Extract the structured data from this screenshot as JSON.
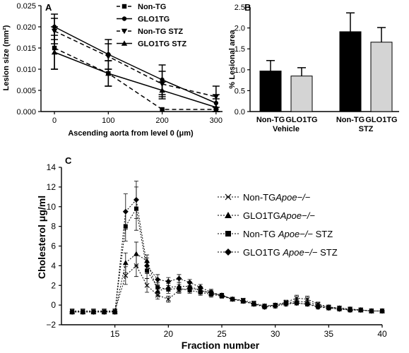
{
  "chart_data": [
    {
      "panel": "A",
      "type": "line",
      "xlabel": "Ascending aorta from level 0 (μm)",
      "ylabel": "Lesion size (mm²)",
      "x": [
        0,
        100,
        200,
        300
      ],
      "xticks": [
        "0",
        "100",
        "200",
        "300"
      ],
      "ylim": [
        0,
        0.025
      ],
      "yticks": [
        "0.000",
        "0.005",
        "0.010",
        "0.015",
        "0.020",
        "0.025"
      ],
      "series": [
        {
          "name": "Non-TG",
          "marker": "square",
          "dash": true,
          "values": [
            0.015,
            0.009,
            0.0005,
            0.0005
          ],
          "err": [
            0.005,
            0.003,
            0.0,
            0.0
          ]
        },
        {
          "name": "GLO1TG",
          "marker": "circle",
          "dash": false,
          "values": [
            0.02,
            0.0135,
            0.0075,
            0.002
          ],
          "err": [
            0.003,
            0.0035,
            0.0035,
            0.002
          ]
        },
        {
          "name": "Non-TG STZ",
          "marker": "triangle-down",
          "dash": true,
          "values": [
            0.019,
            0.013,
            0.0065,
            0.0035
          ],
          "err": [
            0.003,
            0.003,
            0.003,
            0.0025
          ]
        },
        {
          "name": "GLO1TG STZ",
          "marker": "triangle-up",
          "dash": false,
          "values": [
            0.014,
            0.009,
            0.005,
            0.001
          ],
          "err": [
            0.004,
            0.003,
            0.002,
            0.002
          ]
        }
      ]
    },
    {
      "panel": "B",
      "type": "bar",
      "ylabel": "% Lesional area",
      "ylim": [
        0,
        2.5
      ],
      "yticks": [
        "0.0",
        "0.5",
        "1.0",
        "1.5",
        "2.0",
        "2.5"
      ],
      "categories": [
        "Non-TG",
        "GLO1TG",
        "Non-TG",
        "GLO1TG"
      ],
      "groups": [
        "Vehicle",
        "STZ"
      ],
      "values": [
        0.97,
        0.85,
        1.91,
        1.66
      ],
      "err": [
        0.25,
        0.2,
        0.45,
        0.35
      ],
      "colors": [
        "#000000",
        "#d4d4d4",
        "#000000",
        "#d4d4d4"
      ]
    },
    {
      "panel": "C",
      "type": "line",
      "xlabel": "Fraction number",
      "ylabel": "Cholesterol μg/ml",
      "xlim": [
        10,
        40
      ],
      "xticks": [
        "15",
        "20",
        "25",
        "30",
        "35",
        "40"
      ],
      "ylim": [
        -2,
        14
      ],
      "yticks": [
        "−2",
        "0",
        "2",
        "4",
        "6",
        "8",
        "10",
        "12",
        "14"
      ],
      "x": [
        11,
        12,
        13,
        14,
        15,
        16,
        17,
        18,
        19,
        20,
        21,
        22,
        23,
        24,
        25,
        26,
        27,
        28,
        29,
        30,
        31,
        32,
        33,
        34,
        35,
        36,
        37,
        38,
        39,
        40
      ],
      "series": [
        {
          "name": "Non-TG",
          "italic": "Apoe−/−",
          "suffix": "",
          "marker": "x",
          "values": [
            -0.6,
            -0.6,
            -0.6,
            -0.6,
            -0.6,
            3.0,
            4.0,
            2.0,
            1.0,
            0.6,
            1.5,
            1.7,
            1.5,
            1.2,
            1.0,
            0.6,
            0.5,
            0.2,
            -0.1,
            0.0,
            0.3,
            0.7,
            0.6,
            0.1,
            -0.2,
            -0.3,
            -0.4,
            -0.5,
            -0.6,
            -0.6
          ],
          "err": [
            0.2,
            0.2,
            0.2,
            0.2,
            0.2,
            0.9,
            1.1,
            0.7,
            0.4,
            0.3,
            0.3,
            0.3,
            0.3,
            0.3,
            0.2,
            0.2,
            0.2,
            0.2,
            0.2,
            0.2,
            0.2,
            0.3,
            0.3,
            0.2,
            0.2,
            0.2,
            0.2,
            0.2,
            0.2,
            0.2
          ]
        },
        {
          "name": "GLO1TG",
          "italic": "Apoe−/−",
          "suffix": "",
          "marker": "triangle",
          "values": [
            -0.7,
            -0.7,
            -0.7,
            -0.7,
            -0.7,
            4.3,
            5.2,
            4.5,
            1.4,
            1.8,
            1.9,
            1.9,
            1.5,
            1.2,
            1.0,
            0.6,
            0.4,
            0.1,
            -0.1,
            0.0,
            0.2,
            0.4,
            0.3,
            0.0,
            -0.2,
            -0.3,
            -0.4,
            -0.5,
            -0.6,
            -0.6
          ],
          "err": [
            0.2,
            0.2,
            0.2,
            0.2,
            0.2,
            1.0,
            1.2,
            0.6,
            0.4,
            0.4,
            0.4,
            0.3,
            0.3,
            0.3,
            0.2,
            0.2,
            0.2,
            0.2,
            0.2,
            0.2,
            0.2,
            0.3,
            0.3,
            0.2,
            0.2,
            0.2,
            0.2,
            0.2,
            0.2,
            0.2
          ]
        },
        {
          "name": "Non-TG ",
          "italic": "Apoe−/−",
          "suffix": " STZ",
          "marker": "square",
          "values": [
            -0.7,
            -0.7,
            -0.7,
            -0.7,
            -0.7,
            8.0,
            9.8,
            3.5,
            1.8,
            1.6,
            1.7,
            1.5,
            1.3,
            1.1,
            0.9,
            0.6,
            0.4,
            0.1,
            -0.1,
            0.0,
            0.2,
            0.2,
            0.1,
            -0.1,
            -0.3,
            -0.4,
            -0.5,
            -0.5,
            -0.6,
            -0.6
          ],
          "err": [
            0.2,
            0.2,
            0.2,
            0.2,
            0.2,
            1.5,
            2.2,
            0.8,
            0.5,
            0.4,
            0.4,
            0.3,
            0.3,
            0.3,
            0.2,
            0.2,
            0.2,
            0.2,
            0.2,
            0.2,
            0.2,
            0.2,
            0.2,
            0.2,
            0.2,
            0.2,
            0.2,
            0.2,
            0.2,
            0.2
          ]
        },
        {
          "name": "GLO1TG ",
          "italic": "Apoe−/−",
          "suffix": " STZ",
          "marker": "diamond",
          "values": [
            -0.7,
            -0.7,
            -0.7,
            -0.7,
            -0.7,
            9.5,
            10.7,
            4.0,
            2.6,
            2.4,
            2.7,
            2.3,
            1.8,
            1.3,
            1.0,
            0.6,
            0.4,
            0.1,
            -0.2,
            -0.1,
            0.1,
            0.2,
            0.1,
            -0.2,
            -0.3,
            -0.4,
            -0.5,
            -0.5,
            -0.6,
            -0.6
          ],
          "err": [
            0.2,
            0.2,
            0.2,
            0.2,
            0.2,
            1.8,
            1.9,
            0.8,
            0.5,
            0.4,
            0.4,
            0.3,
            0.3,
            0.3,
            0.2,
            0.2,
            0.2,
            0.2,
            0.2,
            0.2,
            0.2,
            0.2,
            0.2,
            0.2,
            0.2,
            0.2,
            0.2,
            0.2,
            0.2,
            0.2
          ]
        }
      ]
    }
  ]
}
